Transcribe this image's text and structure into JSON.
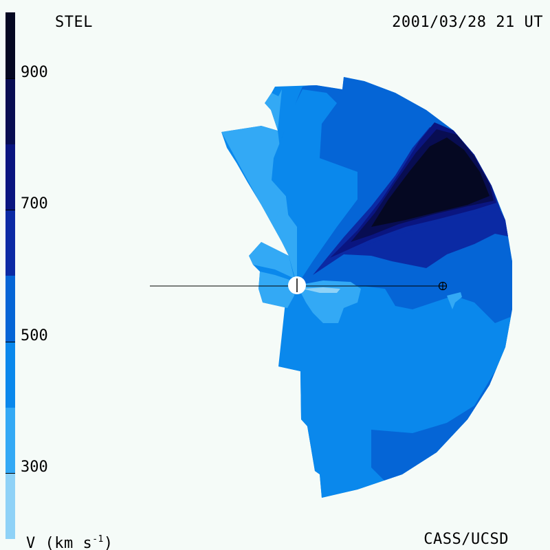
{
  "header": {
    "instrument": "STEL",
    "timestamp": "2001/03/28 21 UT"
  },
  "footer": {
    "credit": "CASS/UCSD"
  },
  "colorbar": {
    "unit_label": "V (km s",
    "unit_exp": "-1",
    "unit_close": ")",
    "ticks": [
      {
        "value": 900,
        "label": "900"
      },
      {
        "value": 700,
        "label": "700"
      },
      {
        "value": 500,
        "label": "500"
      },
      {
        "value": 300,
        "label": "300"
      }
    ],
    "levels": [
      {
        "min": 200,
        "max": 300,
        "color": "#8fd2f7"
      },
      {
        "min": 300,
        "max": 400,
        "color": "#33a9f5"
      },
      {
        "min": 400,
        "max": 500,
        "color": "#0a88ec"
      },
      {
        "min": 500,
        "max": 600,
        "color": "#0565d6"
      },
      {
        "min": 600,
        "max": 700,
        "color": "#0b2aa4"
      },
      {
        "min": 700,
        "max": 800,
        "color": "#0a1580"
      },
      {
        "min": 800,
        "max": 900,
        "color": "#080d52"
      },
      {
        "min": 900,
        "max": 1000,
        "color": "#050822"
      }
    ]
  },
  "markers": {
    "sun": "sun-marker",
    "earth": "earth-marker"
  }
}
